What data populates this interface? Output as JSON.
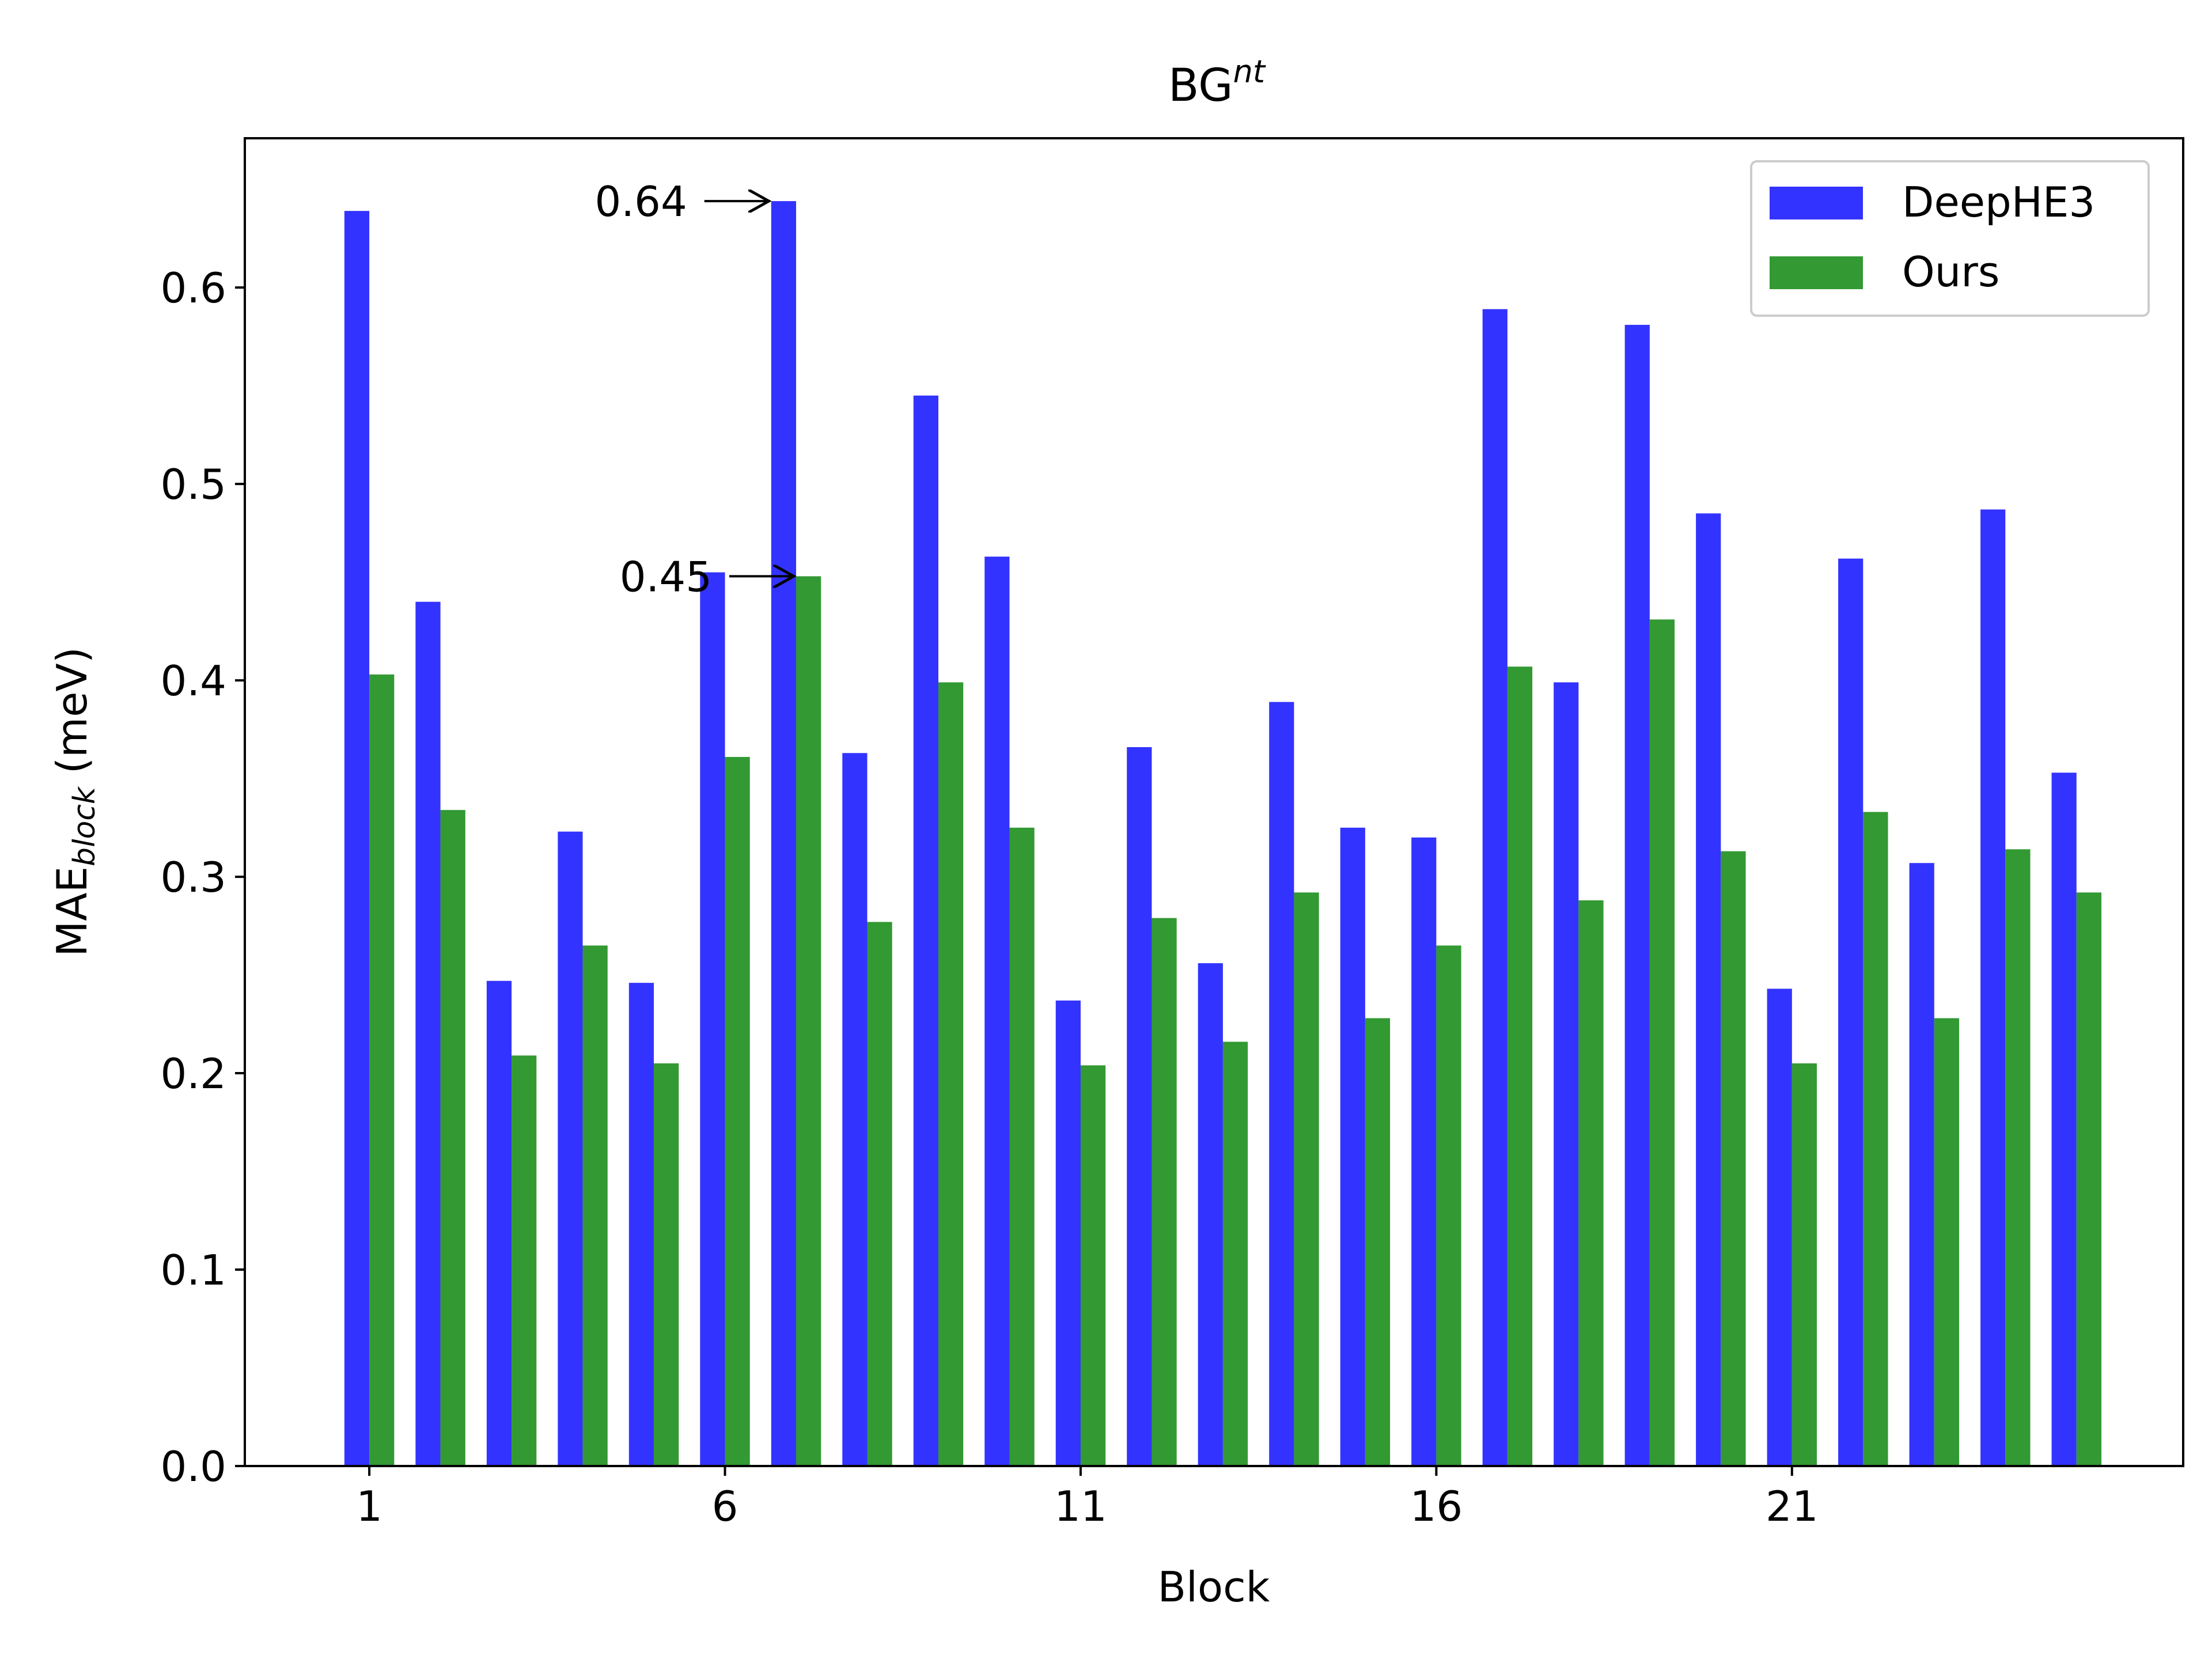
{
  "chart_data": {
    "type": "bar",
    "title": "BG",
    "title_superscript": "nt",
    "xlabel": "Block",
    "ylabel_main": "MAE",
    "ylabel_sub": "block",
    "ylabel_unit": " (meV)",
    "x": [
      1,
      2,
      3,
      4,
      5,
      6,
      7,
      8,
      9,
      10,
      11,
      12,
      13,
      14,
      15,
      16,
      17,
      18,
      19,
      20,
      21,
      22,
      23,
      24,
      25
    ],
    "x_ticks": [
      1,
      6,
      11,
      16,
      21
    ],
    "x_tick_labels": [
      "1",
      "6",
      "11",
      "16",
      "21"
    ],
    "y_ticks": [
      0.0,
      0.1,
      0.2,
      0.3,
      0.4,
      0.5,
      0.6
    ],
    "y_tick_labels": [
      "0.0",
      "0.1",
      "0.2",
      "0.3",
      "0.4",
      "0.5",
      "0.6"
    ],
    "ylim": [
      0,
      0.676
    ],
    "xlim": [
      -0.75,
      26.5
    ],
    "grid": false,
    "legend_position": "top-right",
    "series": [
      {
        "name": "DeepHE3",
        "color": "#3333ff",
        "values": [
          0.639,
          0.44,
          0.247,
          0.323,
          0.246,
          0.455,
          0.644,
          0.363,
          0.545,
          0.463,
          0.237,
          0.366,
          0.256,
          0.389,
          0.325,
          0.32,
          0.589,
          0.399,
          0.581,
          0.485,
          0.243,
          0.462,
          0.307,
          0.487,
          0.353
        ]
      },
      {
        "name": "Ours",
        "color": "#339933",
        "values": [
          0.403,
          0.334,
          0.209,
          0.265,
          0.205,
          0.361,
          0.453,
          0.277,
          0.399,
          0.325,
          0.204,
          0.279,
          0.216,
          0.292,
          0.228,
          0.265,
          0.407,
          0.288,
          0.431,
          0.313,
          0.205,
          0.333,
          0.228,
          0.314,
          0.292
        ]
      }
    ],
    "annotations": [
      {
        "text": "0.64",
        "target_x": 7,
        "target_series": 0,
        "target_value": 0.644
      },
      {
        "text": "0.45",
        "target_x": 7,
        "target_series": 1,
        "target_value": 0.453
      }
    ]
  }
}
